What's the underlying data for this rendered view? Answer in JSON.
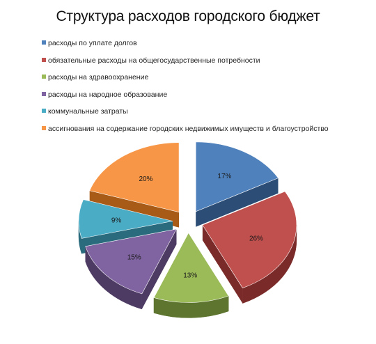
{
  "chart_data": {
    "type": "pie",
    "title": "Структура расходов городского бюджет",
    "legend_position": "top",
    "slices": [
      {
        "label": "расходы по уплате долгов",
        "value": 17,
        "display": "17%",
        "color": "#4f81bd",
        "side": "#2c4d75"
      },
      {
        "label": "обязательные расходы на общегосударственные потребности",
        "value": 26,
        "display": "26%",
        "color": "#c0504d",
        "side": "#7a2b29"
      },
      {
        "label": "расходы на здравоохранение",
        "value": 13,
        "display": "13%",
        "color": "#9bbb59",
        "side": "#5e7530"
      },
      {
        "label": "расходы на народное образование",
        "value": 15,
        "display": "15%",
        "color": "#8064a2",
        "side": "#4d3b63"
      },
      {
        "label": "коммунальные затраты",
        "value": 9,
        "display": "9%",
        "color": "#4bacc6",
        "side": "#2a6c7e"
      },
      {
        "label": "ассигнования на содержание городских недвижимых имуществ и благоустройство",
        "value": 20,
        "display": "20%",
        "color": "#f79646",
        "side": "#a85a17"
      }
    ]
  }
}
